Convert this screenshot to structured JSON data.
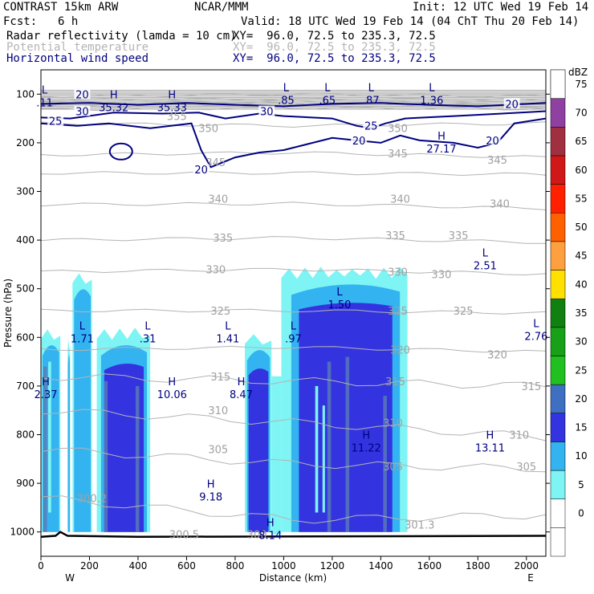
{
  "header": {
    "model": "CONTRAST 15km ARW",
    "org": "NCAR/MMM",
    "init": "Init: 12 UTC Wed 19 Feb 14",
    "fcst_label": "Fcst:",
    "fcst_value": "6 h",
    "valid": "Valid: 18 UTC Wed 19 Feb 14 (04 ChT Thu 20 Feb 14)",
    "fields": [
      {
        "name": "Radar reflectivity (lamda = 10 cm)",
        "xy": "XY=  96.0, 72.5 to 235.3, 72.5",
        "color": "#000000"
      },
      {
        "name": "Potential temperature",
        "xy": "XY=  96.0, 72.5 to 235.3, 72.5",
        "color": "#b4b4b4"
      },
      {
        "name": "Horizontal wind speed",
        "xy": "XY=  96.0, 72.5 to 235.3, 72.5",
        "color": "#000080"
      }
    ]
  },
  "chart_data": {
    "type": "cross-section",
    "xlabel": "Distance (km)",
    "ylabel": "Pressure (hPa)",
    "xlim": [
      0,
      2080
    ],
    "ylim": [
      50,
      1050
    ],
    "x_ticks": [
      0,
      200,
      400,
      600,
      800,
      1000,
      1200,
      1400,
      1600,
      1800,
      2000
    ],
    "y_ticks": [
      100,
      200,
      300,
      400,
      500,
      600,
      700,
      800,
      900,
      1000
    ],
    "x_end_labels": {
      "left": "W",
      "right": "E"
    },
    "colorbar": {
      "unit": "dBZ",
      "levels": [
        0,
        5,
        10,
        15,
        20,
        25,
        30,
        35,
        40,
        45,
        50,
        55,
        60,
        65,
        70,
        75
      ],
      "colors": [
        "#ffffff",
        "#7ff4f4",
        "#33b4f0",
        "#3333e0",
        "#3f6fc0",
        "#20c020",
        "#18a018",
        "#108010",
        "#ffe000",
        "#ffa040",
        "#ff6000",
        "#ff2000",
        "#d01818",
        "#a03040",
        "#9040a0",
        "#b880c8"
      ]
    },
    "reflectivity_columns": [
      {
        "x0": 0,
        "x1": 80,
        "top_hPa": 580,
        "level": 10
      },
      {
        "x0": 110,
        "x1": 120,
        "top_hPa": 600,
        "level": 5
      },
      {
        "x0": 130,
        "x1": 210,
        "top_hPa": 465,
        "level": 5
      },
      {
        "x0": 230,
        "x1": 450,
        "top_hPa": 580,
        "level": 10
      },
      {
        "x0": 840,
        "x1": 950,
        "top_hPa": 590,
        "level": 10
      },
      {
        "x0": 990,
        "x1": 1510,
        "top_hPa": 455,
        "level": 5
      }
    ],
    "theta_labels": [
      {
        "x": 560,
        "p": 145,
        "v": "355"
      },
      {
        "x": 690,
        "p": 170,
        "v": "350"
      },
      {
        "x": 1470,
        "p": 170,
        "v": "350"
      },
      {
        "x": 720,
        "p": 240,
        "v": "345"
      },
      {
        "x": 1470,
        "p": 222,
        "v": "345"
      },
      {
        "x": 1880,
        "p": 235,
        "v": "345"
      },
      {
        "x": 730,
        "p": 315,
        "v": "340"
      },
      {
        "x": 1480,
        "p": 315,
        "v": "340"
      },
      {
        "x": 1890,
        "p": 325,
        "v": "340"
      },
      {
        "x": 750,
        "p": 395,
        "v": "335"
      },
      {
        "x": 1460,
        "p": 390,
        "v": "335"
      },
      {
        "x": 1720,
        "p": 390,
        "v": "335"
      },
      {
        "x": 720,
        "p": 460,
        "v": "330"
      },
      {
        "x": 1470,
        "p": 465,
        "v": "330"
      },
      {
        "x": 1650,
        "p": 470,
        "v": "330"
      },
      {
        "x": 740,
        "p": 545,
        "v": "325"
      },
      {
        "x": 1470,
        "p": 545,
        "v": "325"
      },
      {
        "x": 1740,
        "p": 545,
        "v": "325"
      },
      {
        "x": 1480,
        "p": 625,
        "v": "320"
      },
      {
        "x": 1880,
        "p": 635,
        "v": "320"
      },
      {
        "x": 740,
        "p": 680,
        "v": "315"
      },
      {
        "x": 1460,
        "p": 690,
        "v": "315"
      },
      {
        "x": 2020,
        "p": 700,
        "v": "315"
      },
      {
        "x": 730,
        "p": 750,
        "v": "310"
      },
      {
        "x": 1450,
        "p": 775,
        "v": "310"
      },
      {
        "x": 1970,
        "p": 800,
        "v": "310"
      },
      {
        "x": 730,
        "p": 830,
        "v": "305"
      },
      {
        "x": 1450,
        "p": 865,
        "v": "305"
      },
      {
        "x": 2000,
        "p": 865,
        "v": "305"
      },
      {
        "x": 210,
        "p": 930,
        "v": "300.2"
      },
      {
        "x": 590,
        "p": 1005,
        "v": "300.5"
      },
      {
        "x": 890,
        "p": 1005,
        "v": "300"
      },
      {
        "x": 1560,
        "p": 985,
        "v": "301.3"
      }
    ],
    "wind_labels": [
      {
        "x": 170,
        "p": 100,
        "v": "20"
      },
      {
        "x": 170,
        "p": 135,
        "v": "30"
      },
      {
        "x": 60,
        "p": 155,
        "v": "25"
      },
      {
        "x": 930,
        "p": 135,
        "v": "30"
      },
      {
        "x": 1360,
        "p": 165,
        "v": "25"
      },
      {
        "x": 1940,
        "p": 120,
        "v": "20"
      },
      {
        "x": 1310,
        "p": 195,
        "v": "20"
      },
      {
        "x": 1860,
        "p": 195,
        "v": "20"
      },
      {
        "x": 660,
        "p": 255,
        "v": "20"
      }
    ],
    "extrema": [
      {
        "x": 15,
        "p": 115,
        "t": "L",
        "v": ".11"
      },
      {
        "x": 300,
        "p": 125,
        "t": "H",
        "v": "35.32"
      },
      {
        "x": 540,
        "p": 125,
        "t": "H",
        "v": "35.33"
      },
      {
        "x": 1010,
        "p": 110,
        "t": "L",
        "v": ".85"
      },
      {
        "x": 1180,
        "p": 110,
        "t": "L",
        "v": ".65"
      },
      {
        "x": 1360,
        "p": 110,
        "t": "L",
        "v": ".87"
      },
      {
        "x": 1610,
        "p": 110,
        "t": "L",
        "v": "1.36"
      },
      {
        "x": 1650,
        "p": 210,
        "t": "H",
        "v": "27.17"
      },
      {
        "x": 1830,
        "p": 450,
        "t": "L",
        "v": "2.51"
      },
      {
        "x": 1230,
        "p": 530,
        "t": "L",
        "v": "1.50"
      },
      {
        "x": 170,
        "p": 600,
        "t": "L",
        "v": "1.71"
      },
      {
        "x": 440,
        "p": 600,
        "t": "L",
        "v": ".31"
      },
      {
        "x": 770,
        "p": 600,
        "t": "L",
        "v": "1.41"
      },
      {
        "x": 1040,
        "p": 600,
        "t": "L",
        "v": ".97"
      },
      {
        "x": 2040,
        "p": 595,
        "t": "L",
        "v": "2.76"
      },
      {
        "x": 20,
        "p": 715,
        "t": "H",
        "v": "2.37"
      },
      {
        "x": 540,
        "p": 715,
        "t": "H",
        "v": "10.06"
      },
      {
        "x": 825,
        "p": 715,
        "t": "H",
        "v": "8.47"
      },
      {
        "x": 1340,
        "p": 825,
        "t": "H",
        "v": "11.22"
      },
      {
        "x": 1850,
        "p": 825,
        "t": "H",
        "v": "13.11"
      },
      {
        "x": 700,
        "p": 925,
        "t": "H",
        "v": "9.18"
      },
      {
        "x": 945,
        "p": 1005,
        "t": "H",
        "v": "8.14"
      }
    ]
  }
}
